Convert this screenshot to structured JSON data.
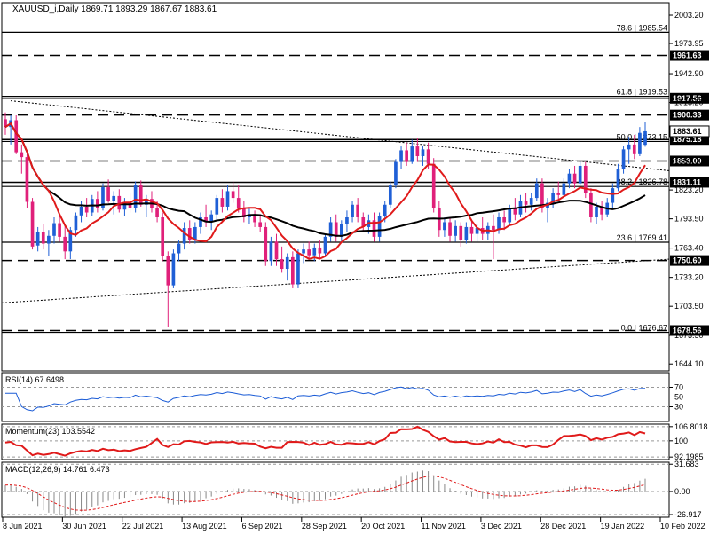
{
  "chart_data": {
    "type": "candlestick",
    "symbol_header": "XAUUSD_i,Daily  1869.71 1893.29 1867.67 1883.61",
    "price_axis_ticks": [
      "2003.20",
      "1973.95",
      "1942.90",
      "1913.20",
      "1883.61",
      "1853.00",
      "1823.20",
      "1793.50",
      "1763.40",
      "1733.20",
      "1703.50",
      "1673.50",
      "1644.10"
    ],
    "date_labels": [
      "8 Jun 2021",
      "30 Jun 2021",
      "22 Jul 2021",
      "13 Aug 2021",
      "6 Sep 2021",
      "28 Sep 2021",
      "20 Oct 2021",
      "11 Nov 2021",
      "3 Dec 2021",
      "28 Dec 2021",
      "19 Jan 2022",
      "10 Feb 2022"
    ],
    "horizontal_levels": [
      {
        "price": 1985.54,
        "label": "78.6 | 1985.54",
        "style": "solid"
      },
      {
        "price": 1961.63,
        "label": "1961.63",
        "style": "dashed",
        "boxed": true
      },
      {
        "price": 1919.53,
        "label": "61.8 | 1919.53",
        "style": "solid"
      },
      {
        "price": 1917.56,
        "label": "1917.56",
        "style": "solid",
        "boxed": true
      },
      {
        "price": 1900.33,
        "label": "1900.33",
        "style": "dashed",
        "boxed": true
      },
      {
        "price": 1875.18,
        "label": "1875.18",
        "style": "solid",
        "boxed": true
      },
      {
        "price": 1873.15,
        "label": "50.0 | 1873.15",
        "style": "solid"
      },
      {
        "price": 1853.0,
        "label": "1853.00",
        "style": "dashed",
        "boxed": true
      },
      {
        "price": 1831.11,
        "label": "1831.11",
        "style": "solid",
        "boxed": true
      },
      {
        "price": 1826.78,
        "label": "38.2 | 1826.78",
        "style": "solid"
      },
      {
        "price": 1769.41,
        "label": "23.6 | 1769.41",
        "style": "solid"
      },
      {
        "price": 1750.6,
        "label": "1750.60",
        "style": "dashed",
        "boxed": true
      },
      {
        "price": 1678.56,
        "label": "1678.56",
        "style": "dashed",
        "boxed": true
      },
      {
        "price": 1676.67,
        "label": "0.0 | 1676.67",
        "style": "solid"
      }
    ],
    "last_price_label": "1883.61",
    "candles": [
      {
        "o": 1896,
        "h": 1903,
        "l": 1880,
        "c": 1888
      },
      {
        "o": 1888,
        "h": 1900,
        "l": 1870,
        "c": 1895
      },
      {
        "o": 1895,
        "h": 1900,
        "l": 1860,
        "c": 1862
      },
      {
        "o": 1862,
        "h": 1870,
        "l": 1840,
        "c": 1857
      },
      {
        "o": 1857,
        "h": 1860,
        "l": 1805,
        "c": 1811
      },
      {
        "o": 1811,
        "h": 1815,
        "l": 1762,
        "c": 1765
      },
      {
        "o": 1766,
        "h": 1785,
        "l": 1760,
        "c": 1780
      },
      {
        "o": 1780,
        "h": 1788,
        "l": 1762,
        "c": 1768
      },
      {
        "o": 1768,
        "h": 1782,
        "l": 1755,
        "c": 1776
      },
      {
        "o": 1776,
        "h": 1795,
        "l": 1768,
        "c": 1789
      },
      {
        "o": 1789,
        "h": 1798,
        "l": 1770,
        "c": 1775
      },
      {
        "o": 1775,
        "h": 1788,
        "l": 1752,
        "c": 1760
      },
      {
        "o": 1760,
        "h": 1785,
        "l": 1752,
        "c": 1782
      },
      {
        "o": 1782,
        "h": 1800,
        "l": 1775,
        "c": 1797
      },
      {
        "o": 1797,
        "h": 1812,
        "l": 1790,
        "c": 1806
      },
      {
        "o": 1806,
        "h": 1815,
        "l": 1795,
        "c": 1800
      },
      {
        "o": 1800,
        "h": 1818,
        "l": 1796,
        "c": 1814
      },
      {
        "o": 1814,
        "h": 1822,
        "l": 1800,
        "c": 1805
      },
      {
        "o": 1805,
        "h": 1830,
        "l": 1802,
        "c": 1826
      },
      {
        "o": 1826,
        "h": 1834,
        "l": 1810,
        "c": 1812
      },
      {
        "o": 1812,
        "h": 1822,
        "l": 1798,
        "c": 1817
      },
      {
        "o": 1817,
        "h": 1824,
        "l": 1800,
        "c": 1803
      },
      {
        "o": 1803,
        "h": 1815,
        "l": 1796,
        "c": 1810
      },
      {
        "o": 1810,
        "h": 1820,
        "l": 1800,
        "c": 1805
      },
      {
        "o": 1805,
        "h": 1832,
        "l": 1800,
        "c": 1828
      },
      {
        "o": 1828,
        "h": 1833,
        "l": 1806,
        "c": 1808
      },
      {
        "o": 1808,
        "h": 1818,
        "l": 1795,
        "c": 1814
      },
      {
        "o": 1814,
        "h": 1822,
        "l": 1800,
        "c": 1805
      },
      {
        "o": 1805,
        "h": 1812,
        "l": 1790,
        "c": 1795
      },
      {
        "o": 1795,
        "h": 1800,
        "l": 1750,
        "c": 1755
      },
      {
        "o": 1755,
        "h": 1760,
        "l": 1682,
        "c": 1725
      },
      {
        "o": 1725,
        "h": 1762,
        "l": 1722,
        "c": 1758
      },
      {
        "o": 1758,
        "h": 1772,
        "l": 1750,
        "c": 1768
      },
      {
        "o": 1768,
        "h": 1790,
        "l": 1762,
        "c": 1784
      },
      {
        "o": 1784,
        "h": 1792,
        "l": 1768,
        "c": 1772
      },
      {
        "o": 1772,
        "h": 1790,
        "l": 1768,
        "c": 1785
      },
      {
        "o": 1785,
        "h": 1800,
        "l": 1778,
        "c": 1795
      },
      {
        "o": 1795,
        "h": 1808,
        "l": 1785,
        "c": 1790
      },
      {
        "o": 1790,
        "h": 1802,
        "l": 1782,
        "c": 1798
      },
      {
        "o": 1798,
        "h": 1818,
        "l": 1792,
        "c": 1815
      },
      {
        "o": 1815,
        "h": 1824,
        "l": 1800,
        "c": 1806
      },
      {
        "o": 1806,
        "h": 1828,
        "l": 1802,
        "c": 1822
      },
      {
        "o": 1822,
        "h": 1832,
        "l": 1810,
        "c": 1815
      },
      {
        "o": 1815,
        "h": 1828,
        "l": 1800,
        "c": 1804
      },
      {
        "o": 1804,
        "h": 1812,
        "l": 1790,
        "c": 1795
      },
      {
        "o": 1795,
        "h": 1805,
        "l": 1788,
        "c": 1798
      },
      {
        "o": 1798,
        "h": 1802,
        "l": 1785,
        "c": 1790
      },
      {
        "o": 1790,
        "h": 1798,
        "l": 1780,
        "c": 1785
      },
      {
        "o": 1785,
        "h": 1790,
        "l": 1745,
        "c": 1750
      },
      {
        "o": 1750,
        "h": 1775,
        "l": 1745,
        "c": 1770
      },
      {
        "o": 1770,
        "h": 1778,
        "l": 1745,
        "c": 1752
      },
      {
        "o": 1752,
        "h": 1765,
        "l": 1738,
        "c": 1742
      },
      {
        "o": 1742,
        "h": 1758,
        "l": 1730,
        "c": 1754
      },
      {
        "o": 1754,
        "h": 1760,
        "l": 1722,
        "c": 1726
      },
      {
        "o": 1726,
        "h": 1762,
        "l": 1722,
        "c": 1758
      },
      {
        "o": 1758,
        "h": 1768,
        "l": 1748,
        "c": 1762
      },
      {
        "o": 1762,
        "h": 1770,
        "l": 1752,
        "c": 1756
      },
      {
        "o": 1756,
        "h": 1768,
        "l": 1750,
        "c": 1764
      },
      {
        "o": 1764,
        "h": 1772,
        "l": 1752,
        "c": 1758
      },
      {
        "o": 1758,
        "h": 1778,
        "l": 1755,
        "c": 1775
      },
      {
        "o": 1775,
        "h": 1795,
        "l": 1770,
        "c": 1790
      },
      {
        "o": 1790,
        "h": 1798,
        "l": 1770,
        "c": 1775
      },
      {
        "o": 1775,
        "h": 1792,
        "l": 1770,
        "c": 1788
      },
      {
        "o": 1788,
        "h": 1802,
        "l": 1780,
        "c": 1795
      },
      {
        "o": 1795,
        "h": 1812,
        "l": 1790,
        "c": 1808
      },
      {
        "o": 1808,
        "h": 1815,
        "l": 1790,
        "c": 1795
      },
      {
        "o": 1795,
        "h": 1800,
        "l": 1780,
        "c": 1785
      },
      {
        "o": 1785,
        "h": 1798,
        "l": 1778,
        "c": 1792
      },
      {
        "o": 1792,
        "h": 1800,
        "l": 1770,
        "c": 1775
      },
      {
        "o": 1775,
        "h": 1800,
        "l": 1770,
        "c": 1796
      },
      {
        "o": 1796,
        "h": 1812,
        "l": 1790,
        "c": 1808
      },
      {
        "o": 1808,
        "h": 1832,
        "l": 1805,
        "c": 1828
      },
      {
        "o": 1828,
        "h": 1855,
        "l": 1825,
        "c": 1852
      },
      {
        "o": 1852,
        "h": 1868,
        "l": 1845,
        "c": 1864
      },
      {
        "o": 1864,
        "h": 1872,
        "l": 1848,
        "c": 1852
      },
      {
        "o": 1852,
        "h": 1875,
        "l": 1850,
        "c": 1868
      },
      {
        "o": 1868,
        "h": 1877,
        "l": 1852,
        "c": 1858
      },
      {
        "o": 1858,
        "h": 1868,
        "l": 1848,
        "c": 1865
      },
      {
        "o": 1865,
        "h": 1872,
        "l": 1845,
        "c": 1850
      },
      {
        "o": 1850,
        "h": 1856,
        "l": 1800,
        "c": 1805
      },
      {
        "o": 1805,
        "h": 1812,
        "l": 1775,
        "c": 1782
      },
      {
        "o": 1782,
        "h": 1795,
        "l": 1775,
        "c": 1790
      },
      {
        "o": 1790,
        "h": 1795,
        "l": 1770,
        "c": 1776
      },
      {
        "o": 1776,
        "h": 1792,
        "l": 1770,
        "c": 1786
      },
      {
        "o": 1786,
        "h": 1790,
        "l": 1765,
        "c": 1772
      },
      {
        "o": 1772,
        "h": 1790,
        "l": 1768,
        "c": 1785
      },
      {
        "o": 1785,
        "h": 1792,
        "l": 1770,
        "c": 1778
      },
      {
        "o": 1778,
        "h": 1788,
        "l": 1770,
        "c": 1784
      },
      {
        "o": 1784,
        "h": 1795,
        "l": 1772,
        "c": 1778
      },
      {
        "o": 1778,
        "h": 1790,
        "l": 1772,
        "c": 1786
      },
      {
        "o": 1786,
        "h": 1798,
        "l": 1752,
        "c": 1782
      },
      {
        "o": 1782,
        "h": 1800,
        "l": 1778,
        "c": 1795
      },
      {
        "o": 1795,
        "h": 1802,
        "l": 1782,
        "c": 1790
      },
      {
        "o": 1790,
        "h": 1808,
        "l": 1786,
        "c": 1804
      },
      {
        "o": 1804,
        "h": 1815,
        "l": 1792,
        "c": 1798
      },
      {
        "o": 1798,
        "h": 1818,
        "l": 1795,
        "c": 1812
      },
      {
        "o": 1812,
        "h": 1820,
        "l": 1800,
        "c": 1808
      },
      {
        "o": 1808,
        "h": 1820,
        "l": 1802,
        "c": 1815
      },
      {
        "o": 1815,
        "h": 1835,
        "l": 1812,
        "c": 1830
      },
      {
        "o": 1830,
        "h": 1835,
        "l": 1800,
        "c": 1805
      },
      {
        "o": 1805,
        "h": 1815,
        "l": 1790,
        "c": 1810
      },
      {
        "o": 1810,
        "h": 1825,
        "l": 1805,
        "c": 1820
      },
      {
        "o": 1820,
        "h": 1832,
        "l": 1812,
        "c": 1818
      },
      {
        "o": 1818,
        "h": 1835,
        "l": 1815,
        "c": 1830
      },
      {
        "o": 1830,
        "h": 1845,
        "l": 1825,
        "c": 1840
      },
      {
        "o": 1840,
        "h": 1848,
        "l": 1825,
        "c": 1830
      },
      {
        "o": 1830,
        "h": 1852,
        "l": 1828,
        "c": 1848
      },
      {
        "o": 1848,
        "h": 1852,
        "l": 1815,
        "c": 1820
      },
      {
        "o": 1820,
        "h": 1825,
        "l": 1790,
        "c": 1795
      },
      {
        "o": 1795,
        "h": 1810,
        "l": 1788,
        "c": 1806
      },
      {
        "o": 1806,
        "h": 1812,
        "l": 1792,
        "c": 1798
      },
      {
        "o": 1798,
        "h": 1815,
        "l": 1795,
        "c": 1810
      },
      {
        "o": 1810,
        "h": 1830,
        "l": 1805,
        "c": 1825
      },
      {
        "o": 1825,
        "h": 1850,
        "l": 1822,
        "c": 1845
      },
      {
        "o": 1845,
        "h": 1868,
        "l": 1840,
        "c": 1865
      },
      {
        "o": 1865,
        "h": 1878,
        "l": 1850,
        "c": 1870
      },
      {
        "o": 1870,
        "h": 1880,
        "l": 1855,
        "c": 1860
      },
      {
        "o": 1860,
        "h": 1888,
        "l": 1858,
        "c": 1882
      },
      {
        "o": 1869.71,
        "h": 1893.29,
        "l": 1867.67,
        "c": 1883.61
      }
    ],
    "indicators": {
      "rsi": {
        "label": "RSI(14) 67.6498",
        "levels": [
          "70",
          "50",
          "30"
        ],
        "range": [
          0,
          100
        ],
        "last": 67.6498
      },
      "momentum": {
        "label": "Momentum(23) 103.5542",
        "levels": [
          "106.8018",
          "100",
          "92.1985"
        ],
        "range": [
          91,
          108
        ],
        "last": 103.5542
      },
      "macd": {
        "label": "MACD(12,26,9) 14.761 6.473",
        "levels": [
          "31.683",
          "0.00",
          "-26.917"
        ],
        "range": [
          -30,
          34
        ],
        "main": 14.761,
        "signal": 6.473
      }
    },
    "colors": {
      "bull": "#1f5fd6",
      "bear": "#e0207a",
      "ma50": "#e01a1a",
      "ma200": "#000000",
      "indicator": "#1a5bd6",
      "momentum": "#e01a1a",
      "macd_signal": "#e01a1a",
      "background": "#ffffff"
    }
  }
}
